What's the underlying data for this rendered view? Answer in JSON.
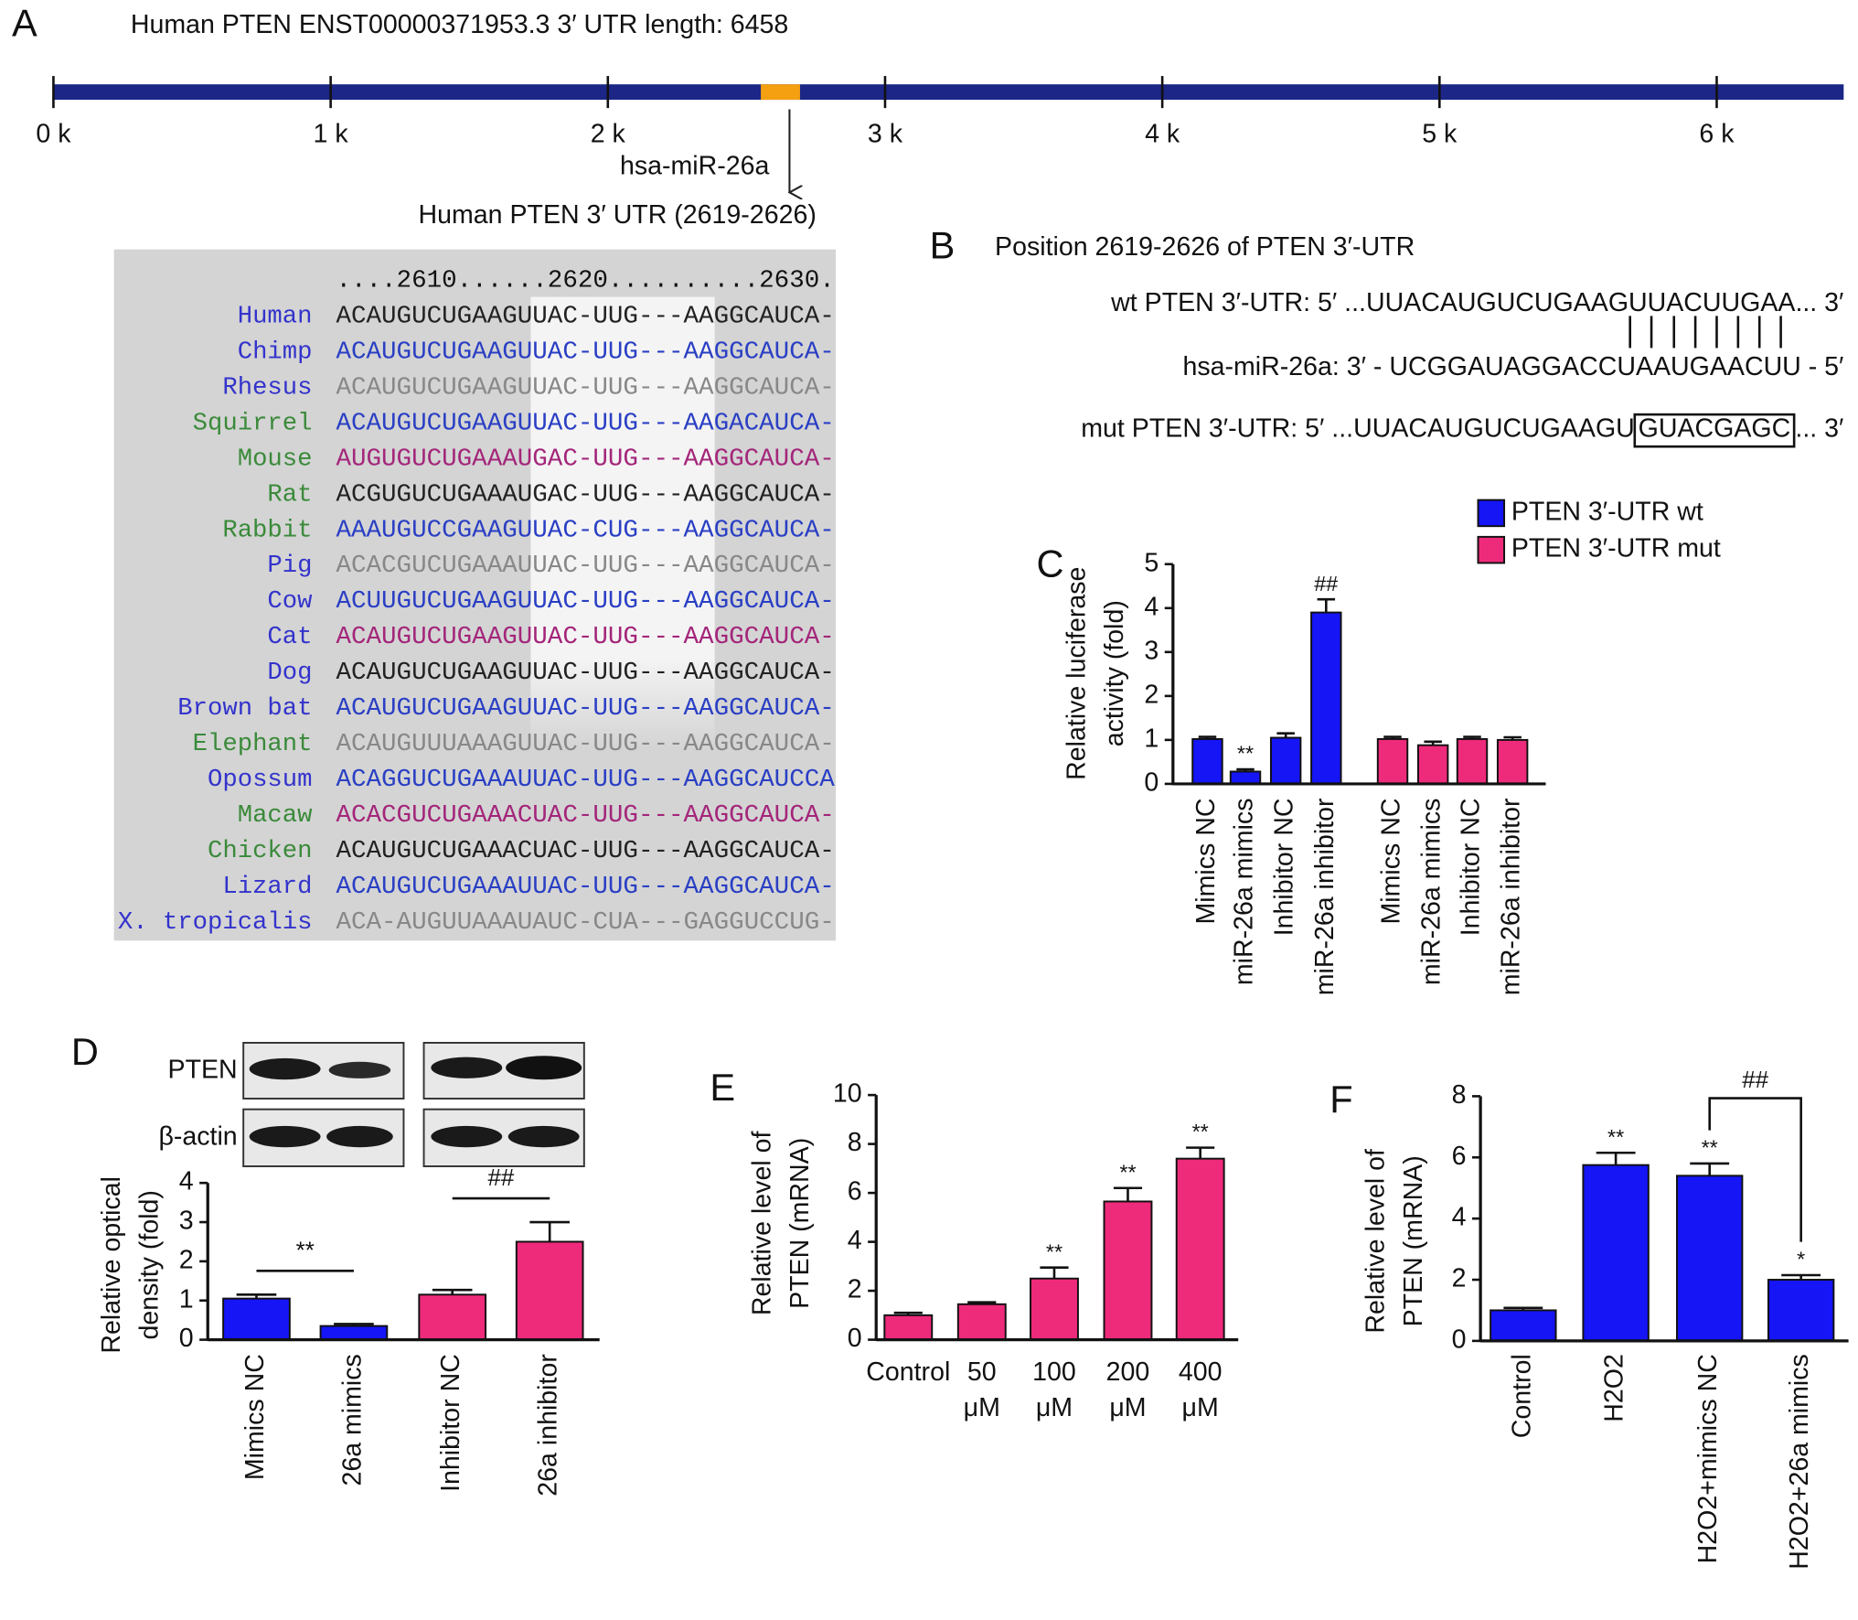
{
  "panel_a": {
    "label": "A",
    "title": "Human PTEN ENST00000371953.3 3′ UTR length: 6458",
    "xlim": [
      0,
      6458
    ],
    "xticks": [
      {
        "value": 0,
        "label": "0 k"
      },
      {
        "value": 1000,
        "label": "1 k"
      },
      {
        "value": 2000,
        "label": "2 k"
      },
      {
        "value": 3000,
        "label": "3 k"
      },
      {
        "value": 4000,
        "label": "4 k"
      },
      {
        "value": 5000,
        "label": "5 k"
      },
      {
        "value": 6000,
        "label": "6 k"
      }
    ],
    "track_color": "#1c2687",
    "site": [
      2619,
      2626
    ],
    "site_color": "#f5a011",
    "site_label": "hsa-miR-26a",
    "subtitle": "Human PTEN 3′ UTR (2619-2626)",
    "ruler": "....2610......2620..........2630.",
    "rows": [
      {
        "name": "Human",
        "sequence": "ACAUGUCUGAAGUUAC-UUG---AAGGCAUCA-",
        "name_color": "#3333cc",
        "color": "#222222"
      },
      {
        "name": "Chimp",
        "sequence": "ACAUGUCUGAAGUUAC-UUG---AAGGCAUCA-",
        "name_color": "#3333cc",
        "color": "#2a3fc4"
      },
      {
        "name": "Rhesus",
        "sequence": "ACAUGUCUGAAGUUAC-UUG---AAGGCAUCA-",
        "name_color": "#3333cc",
        "color": "#888888"
      },
      {
        "name": "Squirrel",
        "sequence": "ACAUGUCUGAAGUUAC-UUG---AAGACAUCA-",
        "name_color": "#3a8a3a",
        "color": "#2a3fc4"
      },
      {
        "name": "Mouse",
        "sequence": "AUGUGUCUGAAAUGAC-UUG---AAGGCAUCA-",
        "name_color": "#3a8a3a",
        "color": "#a3267a"
      },
      {
        "name": "Rat",
        "sequence": "ACGUGUCUGAAAUGAC-UUG---AAGGCAUCA-",
        "name_color": "#3a8a3a",
        "color": "#222222"
      },
      {
        "name": "Rabbit",
        "sequence": "AAAUGUCCGAAGUUAC-CUG---AAGGCAUCA-",
        "name_color": "#3a8a3a",
        "color": "#2a3fc4"
      },
      {
        "name": "Pig",
        "sequence": "ACACGUCUGAAAUUAC-UUG---AAGGCAUCA-",
        "name_color": "#3333cc",
        "color": "#888888"
      },
      {
        "name": "Cow",
        "sequence": "ACUUGUCUGAAGUUAC-UUG---AAGGCAUCA-",
        "name_color": "#3333cc",
        "color": "#2a3fc4"
      },
      {
        "name": "Cat",
        "sequence": "ACAUGUCUGAAGUUAC-UUG---AAGGCAUCA-",
        "name_color": "#3333cc",
        "color": "#a3267a"
      },
      {
        "name": "Dog",
        "sequence": "ACAUGUCUGAAGUUAC-UUG---AAGGCAUCA-",
        "name_color": "#3333cc",
        "color": "#222222"
      },
      {
        "name": "Brown bat",
        "sequence": "ACAUGUCUGAAGUUAC-UUG---AAGGCAUCA-",
        "name_color": "#3333cc",
        "color": "#2a3fc4"
      },
      {
        "name": "Elephant",
        "sequence": "ACAUGUUUAAAGUUAC-UUG---AAGGCAUCA-",
        "name_color": "#3a8a3a",
        "color": "#888888"
      },
      {
        "name": "Opossum",
        "sequence": "ACAGGUCUGAAAUUAC-UUG---AAGGCAUCCA",
        "name_color": "#3333cc",
        "color": "#2a3fc4"
      },
      {
        "name": "Macaw",
        "sequence": "ACACGUCUGAAACUAC-UUG---AAGGCAUCA-",
        "name_color": "#3a8a3a",
        "color": "#a3267a"
      },
      {
        "name": "Chicken",
        "sequence": "ACAUGUCUGAAACUAC-UUG---AAGGCAUCA-",
        "name_color": "#3a8a3a",
        "color": "#222222"
      },
      {
        "name": "Lizard",
        "sequence": "ACAUGUCUGAAAUUAC-UUG---AAGGCAUCA-",
        "name_color": "#3333cc",
        "color": "#2a3fc4"
      },
      {
        "name": "X. tropicalis",
        "sequence": "ACA-AUGUUAAAUAUC-CUA---GAGGUCCUG-",
        "name_color": "#3333cc",
        "color": "#888888"
      }
    ]
  },
  "panel_b": {
    "label": "B",
    "title": "Position 2619-2626 of PTEN 3′-UTR",
    "wt": "wt PTEN 3′-UTR: 5′ ...UUACAUGUCUGAAGUUACUUGAA... 3′",
    "mirna": "hsa-miR-26a: 3′ - UCGGAUAGGACCUAAUGAACUU - 5′",
    "mut_prefix": "mut PTEN 3′-UTR: 5′ ...UUACAUGUCUGAAGU",
    "mut_box": "GUACGAGC",
    "mut_suffix": "... 3′"
  },
  "chart_data": [
    {
      "type": "bar",
      "label": "C",
      "ylabel": [
        "Relative luciferase",
        "activity (fold)"
      ],
      "categories": [
        "Mimics NC",
        "miR-26a mimics",
        "Inhibitor NC",
        "miR-26a inhibitor",
        "Mimics NC",
        "miR-26a mimics",
        "Inhibitor NC",
        "miR-26a inhibitor"
      ],
      "series": [
        {
          "name": "PTEN 3′-UTR wt",
          "color": "#1515f5",
          "values": [
            1.02,
            0.28,
            1.05,
            3.9,
            null,
            null,
            null,
            null
          ],
          "errors": [
            0.05,
            0.05,
            0.1,
            0.3,
            null,
            null,
            null,
            null
          ],
          "annotations": [
            null,
            "**",
            null,
            "##",
            null,
            null,
            null,
            null
          ]
        },
        {
          "name": "PTEN 3′-UTR mut",
          "color": "#ee2a7b",
          "values": [
            null,
            null,
            null,
            null,
            1.02,
            0.88,
            1.02,
            1.0
          ],
          "errors": [
            null,
            null,
            null,
            null,
            0.05,
            0.08,
            0.05,
            0.06
          ],
          "annotations": [
            null,
            null,
            null,
            null,
            null,
            null,
            null,
            null
          ]
        }
      ],
      "ylim": [
        0,
        5
      ],
      "yticks": [
        0,
        1,
        2,
        3,
        4,
        5
      ]
    },
    {
      "type": "bar",
      "label": "D",
      "blot_labels": [
        "PTEN",
        "β-actin"
      ],
      "ylabel": [
        "Relative optical",
        "density (fold)"
      ],
      "categories": [
        "Mimics NC",
        "26a mimics",
        "Inhibitor NC",
        "26a inhibitor"
      ],
      "values": [
        1.05,
        0.35,
        1.15,
        2.5
      ],
      "errors": [
        0.1,
        0.05,
        0.12,
        0.5
      ],
      "colors": [
        "#1515f5",
        "#1515f5",
        "#ee2a7b",
        "#ee2a7b"
      ],
      "brackets": [
        {
          "text": "**",
          "from": 0,
          "to": 1
        },
        {
          "text": "##",
          "from": 2,
          "to": 3
        }
      ],
      "ylim": [
        0,
        4
      ],
      "yticks": [
        0,
        1,
        2,
        3,
        4
      ]
    },
    {
      "type": "bar",
      "label": "E",
      "ylabel": [
        "Relative level of",
        "PTEN (mRNA)"
      ],
      "categories": [
        "Control",
        "50 μM",
        "100 μM",
        "200 μM",
        "400 μM"
      ],
      "values": [
        1.0,
        1.45,
        2.5,
        5.65,
        7.4
      ],
      "errors": [
        0.1,
        0.08,
        0.45,
        0.55,
        0.45
      ],
      "annotations": [
        null,
        null,
        "**",
        "**",
        "**"
      ],
      "color": "#ee2a7b",
      "ylim": [
        0,
        10
      ],
      "yticks": [
        0,
        2,
        4,
        6,
        8,
        10
      ]
    },
    {
      "type": "bar",
      "label": "F",
      "ylabel": [
        "Relative level of",
        "PTEN (mRNA)"
      ],
      "categories": [
        "Control",
        "H2O2",
        "H2O2+mimics NC",
        "H2O2+26a mimics"
      ],
      "values": [
        1.0,
        5.75,
        5.4,
        2.0
      ],
      "errors": [
        0.08,
        0.4,
        0.4,
        0.15
      ],
      "annotations": [
        null,
        "**",
        "**",
        "*"
      ],
      "brackets": [
        {
          "text": "##",
          "from": 2,
          "to": 3
        }
      ],
      "color": "#1515f5",
      "ylim": [
        0,
        8
      ],
      "yticks": [
        0,
        2,
        4,
        6,
        8
      ]
    }
  ]
}
